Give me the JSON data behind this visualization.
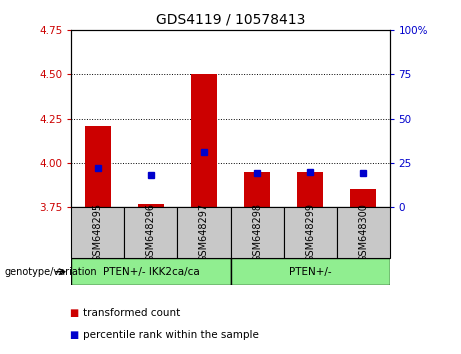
{
  "title": "GDS4119 / 10578413",
  "samples": [
    "GSM648295",
    "GSM648296",
    "GSM648297",
    "GSM648298",
    "GSM648299",
    "GSM648300"
  ],
  "red_values": [
    4.21,
    3.77,
    4.5,
    3.95,
    3.95,
    3.85
  ],
  "blue_values_left": [
    3.97,
    3.93,
    4.06,
    3.94,
    3.95,
    3.94
  ],
  "ylim": [
    3.75,
    4.75
  ],
  "yticks": [
    3.75,
    4.0,
    4.25,
    4.5,
    4.75
  ],
  "y2lim": [
    0,
    100
  ],
  "y2ticks": [
    0,
    25,
    50,
    75,
    100
  ],
  "y2labels": [
    "0",
    "25",
    "50",
    "75",
    "100%"
  ],
  "bar_bottom": 3.75,
  "group1_label": "PTEN+/- IKK2ca/ca",
  "group2_label": "PTEN+/-",
  "group1_indices": [
    0,
    1,
    2
  ],
  "group2_indices": [
    3,
    4,
    5
  ],
  "legend1": "transformed count",
  "legend2": "percentile rank within the sample",
  "genotype_label": "genotype/variation",
  "red_color": "#cc0000",
  "blue_color": "#0000cc",
  "group_bg_color": "#c8c8c8",
  "green_fill": "#90ee90",
  "bar_width": 0.5,
  "blue_marker_size": 5,
  "title_fontsize": 10,
  "tick_fontsize": 7.5,
  "label_fontsize": 7,
  "group_fontsize": 7.5,
  "legend_fontsize": 7.5
}
